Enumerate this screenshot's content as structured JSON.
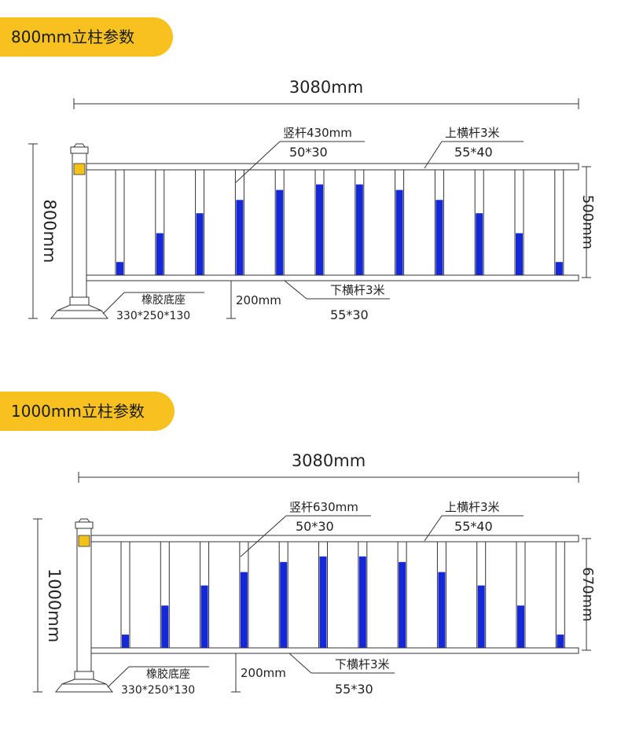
{
  "colors": {
    "pill": "#f7c21f",
    "picket_blue": "#1428d8",
    "line": "#333333"
  },
  "sections": [
    {
      "title": "800mm立柱参数",
      "total_width": "3080mm",
      "post_height": "800mm",
      "panel_height": "500mm",
      "picket": {
        "label": "竖杆430mm",
        "spec": "50*30"
      },
      "top_rail": {
        "label": "上横杆3米",
        "spec": "55*40"
      },
      "bottom_rail": {
        "label": "下横杆3米",
        "spec": "55*30"
      },
      "base": {
        "label": "橡胶底座",
        "spec": "330*250*130"
      },
      "ground_gap": "200mm"
    },
    {
      "title": "1000mm立柱参数",
      "total_width": "3080mm",
      "post_height": "1000mm",
      "panel_height": "670mm",
      "picket": {
        "label": "竖杆630mm",
        "spec": "50*30"
      },
      "top_rail": {
        "label": "上横杆3米",
        "spec": "55*40"
      },
      "bottom_rail": {
        "label": "下横杆3米",
        "spec": "55*30"
      },
      "base": {
        "label": "橡胶底座",
        "spec": "330*250*130"
      },
      "ground_gap": "200mm"
    }
  ]
}
